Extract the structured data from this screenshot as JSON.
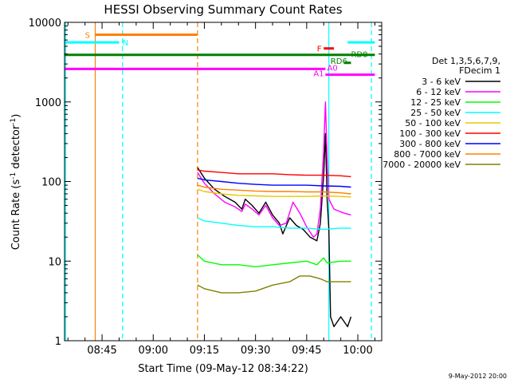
{
  "chart_data": {
    "type": "line",
    "title": "HESSI Observing Summary Count Rates",
    "ylabel": "Count Rate (s⁻¹ detector⁻¹)",
    "ylabel_parts": {
      "main": "Count Rate (s",
      "sup1": "-1",
      "mid": " detector",
      "sup2": "-1",
      "end": ")"
    },
    "xlabel": "Start Time (09-May-12 08:34:22)",
    "date_stamp": "9-May-2012 20:00",
    "y_scale": "log",
    "ylim": [
      1,
      10000
    ],
    "xlim": [
      "08:34",
      "10:07"
    ],
    "y_ticks": [
      {
        "value": 1,
        "label": "1"
      },
      {
        "value": 10,
        "label": "10"
      },
      {
        "value": 100,
        "label": "100"
      },
      {
        "value": 1000,
        "label": "1000"
      },
      {
        "value": 10000,
        "label": "10000"
      }
    ],
    "x_ticks": [
      {
        "value": "08:45",
        "label": "08:45"
      },
      {
        "value": "09:00",
        "label": "09:00"
      },
      {
        "value": "09:15",
        "label": "09:15"
      },
      {
        "value": "09:30",
        "label": "09:30"
      },
      {
        "value": "09:45",
        "label": "09:45"
      },
      {
        "value": "10:00",
        "label": "10:00"
      }
    ],
    "legend": {
      "placement": "right",
      "header": [
        "Det 1,3,5,6,7,9,",
        "FDecim 1"
      ],
      "entries": [
        {
          "label": "3 - 6 keV",
          "color": "#000000"
        },
        {
          "label": "6 - 12 keV",
          "color": "#ff00ff"
        },
        {
          "label": "12 - 25 keV",
          "color": "#00ff00"
        },
        {
          "label": "25 - 50 keV",
          "color": "#00ffff"
        },
        {
          "label": "50 - 100 keV",
          "color": "#e8c800"
        },
        {
          "label": "100 - 300 keV",
          "color": "#ff0000"
        },
        {
          "label": "300 - 800 keV",
          "color": "#0000ff"
        },
        {
          "label": "800 - 7000 keV",
          "color": "#ff8000"
        },
        {
          "label": "7000 - 20000 keV",
          "color": "#808000"
        }
      ]
    },
    "series": [
      {
        "name": "3 - 6 keV",
        "color": "#000000",
        "values": [
          [
            "09:13",
            150
          ],
          [
            "09:15",
            110
          ],
          [
            "09:18",
            80
          ],
          [
            "09:21",
            65
          ],
          [
            "09:24",
            55
          ],
          [
            "09:26",
            45
          ],
          [
            "09:27",
            60
          ],
          [
            "09:29",
            50
          ],
          [
            "09:31",
            40
          ],
          [
            "09:33",
            55
          ],
          [
            "09:35",
            38
          ],
          [
            "09:37",
            30
          ],
          [
            "09:38",
            22
          ],
          [
            "09:40",
            35
          ],
          [
            "09:42",
            28
          ],
          [
            "09:44",
            25
          ],
          [
            "09:46",
            20
          ],
          [
            "09:48",
            18
          ],
          [
            "09:49",
            30
          ],
          [
            "09:50",
            120
          ],
          [
            "09:50.5",
            400
          ],
          [
            "09:51",
            60
          ],
          [
            "09:51.5",
            25
          ],
          [
            "09:52",
            2
          ],
          [
            "09:53",
            1.5
          ],
          [
            "09:55",
            2
          ],
          [
            "09:57",
            1.5
          ],
          [
            "09:58",
            2
          ]
        ]
      },
      {
        "name": "6 - 12 keV",
        "color": "#ff00ff",
        "values": [
          [
            "09:13",
            130
          ],
          [
            "09:15",
            95
          ],
          [
            "09:18",
            70
          ],
          [
            "09:21",
            55
          ],
          [
            "09:24",
            48
          ],
          [
            "09:26",
            42
          ],
          [
            "09:27",
            52
          ],
          [
            "09:29",
            45
          ],
          [
            "09:31",
            38
          ],
          [
            "09:33",
            50
          ],
          [
            "09:35",
            35
          ],
          [
            "09:37",
            28
          ],
          [
            "09:39",
            30
          ],
          [
            "09:41",
            55
          ],
          [
            "09:43",
            40
          ],
          [
            "09:45",
            27
          ],
          [
            "09:47",
            20
          ],
          [
            "09:48",
            22
          ],
          [
            "09:49",
            45
          ],
          [
            "09:50",
            250
          ],
          [
            "09:50.5",
            1000
          ],
          [
            "09:51",
            200
          ],
          [
            "09:51.5",
            60
          ],
          [
            "09:53",
            45
          ],
          [
            "09:56",
            40
          ],
          [
            "09:58",
            38
          ]
        ]
      },
      {
        "name": "12 - 25 keV",
        "color": "#00ff00",
        "values": [
          [
            "09:13",
            12
          ],
          [
            "09:15",
            10
          ],
          [
            "09:20",
            9
          ],
          [
            "09:25",
            9
          ],
          [
            "09:30",
            8.5
          ],
          [
            "09:35",
            9
          ],
          [
            "09:40",
            9.5
          ],
          [
            "09:45",
            10
          ],
          [
            "09:48",
            9
          ],
          [
            "09:50",
            11
          ],
          [
            "09:51",
            9.5
          ],
          [
            "09:55",
            10
          ],
          [
            "09:58",
            10
          ]
        ]
      },
      {
        "name": "25 - 50 keV",
        "color": "#00ffff",
        "values": [
          [
            "09:13",
            35
          ],
          [
            "09:15",
            32
          ],
          [
            "09:20",
            30
          ],
          [
            "09:25",
            28
          ],
          [
            "09:30",
            27
          ],
          [
            "09:35",
            27
          ],
          [
            "09:40",
            26
          ],
          [
            "09:45",
            26
          ],
          [
            "09:50",
            25
          ],
          [
            "09:55",
            26
          ],
          [
            "09:58",
            26
          ]
        ]
      },
      {
        "name": "50 - 100 keV",
        "color": "#e8c800",
        "values": [
          [
            "09:13",
            80
          ],
          [
            "09:15",
            75
          ],
          [
            "09:20",
            70
          ],
          [
            "09:25",
            67
          ],
          [
            "09:30",
            66
          ],
          [
            "09:35",
            65
          ],
          [
            "09:40",
            65
          ],
          [
            "09:45",
            65
          ],
          [
            "09:50",
            66
          ],
          [
            "09:55",
            65
          ],
          [
            "09:58",
            64
          ]
        ]
      },
      {
        "name": "100 - 300 keV",
        "color": "#ff0000",
        "values": [
          [
            "09:13",
            140
          ],
          [
            "09:15",
            135
          ],
          [
            "09:20",
            130
          ],
          [
            "09:25",
            125
          ],
          [
            "09:30",
            125
          ],
          [
            "09:35",
            125
          ],
          [
            "09:40",
            122
          ],
          [
            "09:45",
            120
          ],
          [
            "09:50",
            120
          ],
          [
            "09:55",
            118
          ],
          [
            "09:58",
            115
          ]
        ]
      },
      {
        "name": "300 - 800 keV",
        "color": "#0000ff",
        "values": [
          [
            "09:13",
            110
          ],
          [
            "09:15",
            105
          ],
          [
            "09:20",
            100
          ],
          [
            "09:25",
            95
          ],
          [
            "09:30",
            92
          ],
          [
            "09:35",
            90
          ],
          [
            "09:40",
            90
          ],
          [
            "09:45",
            90
          ],
          [
            "09:50",
            88
          ],
          [
            "09:55",
            87
          ],
          [
            "09:58",
            85
          ]
        ]
      },
      {
        "name": "800 - 7000 keV",
        "color": "#ff8000",
        "values": [
          [
            "09:13",
            90
          ],
          [
            "09:15",
            85
          ],
          [
            "09:20",
            80
          ],
          [
            "09:25",
            78
          ],
          [
            "09:30",
            76
          ],
          [
            "09:35",
            75
          ],
          [
            "09:40",
            75
          ],
          [
            "09:45",
            74
          ],
          [
            "09:50",
            74
          ],
          [
            "09:55",
            72
          ],
          [
            "09:58",
            70
          ]
        ]
      },
      {
        "name": "7000 - 20000 keV",
        "color": "#808000",
        "values": [
          [
            "09:13",
            5
          ],
          [
            "09:15",
            4.5
          ],
          [
            "09:20",
            4
          ],
          [
            "09:25",
            4
          ],
          [
            "09:30",
            4.2
          ],
          [
            "09:35",
            5
          ],
          [
            "09:40",
            5.5
          ],
          [
            "09:43",
            6.5
          ],
          [
            "09:46",
            6.5
          ],
          [
            "09:49",
            6
          ],
          [
            "09:51",
            5.5
          ],
          [
            "09:55",
            5.5
          ],
          [
            "09:58",
            5.5
          ]
        ]
      }
    ],
    "state_bars": [
      {
        "label": "S",
        "color": "#ff8000",
        "y": 7000,
        "x_start": "08:43",
        "x_end": "09:13"
      },
      {
        "label": "N",
        "color": "#00ffff",
        "y": 5600,
        "x_start": "08:34",
        "x_end": "08:50"
      },
      {
        "label": "N",
        "color": "#00ffff",
        "y": 5600,
        "x_start": "09:57",
        "x_end": "10:05"
      },
      {
        "label": "F",
        "color": "#ff0000",
        "y": 4700,
        "x_start": "09:50",
        "x_end": "09:53"
      },
      {
        "label": "RD8",
        "color": "#008000",
        "y": 3900,
        "x_start": "08:34",
        "x_end": "10:05"
      },
      {
        "label": "RD6",
        "color": "#008000",
        "y": 3100,
        "x_start": "09:56",
        "x_end": "09:58"
      },
      {
        "label": "A1",
        "color": "#ff00ff",
        "y": 2600,
        "x_start": "08:34",
        "x_end": "09:50.5"
      },
      {
        "label": "A0",
        "color": "#ff00ff",
        "y": 2200,
        "x_start": "09:50.5",
        "x_end": "10:05"
      }
    ],
    "state_labels": [
      {
        "text": "S",
        "color": "#ff8000",
        "x": "08:40",
        "y": 7000
      },
      {
        "text": "N",
        "color": "#00ffff",
        "x": "08:51",
        "y": 5600
      },
      {
        "text": "F",
        "color": "#ff0000",
        "x": "09:48",
        "y": 4700
      },
      {
        "text": "RD8",
        "color": "#008000",
        "x": "09:58",
        "y": 4000
      },
      {
        "text": "RD6",
        "color": "#008000",
        "x": "09:52",
        "y": 3300
      },
      {
        "text": "A1",
        "color": "#ff00ff",
        "x": "09:47",
        "y": 2300
      },
      {
        "text": "A0",
        "color": "#ff00ff",
        "x": "09:51",
        "y": 2700
      }
    ],
    "vertical_markers": [
      {
        "x": "08:34.3",
        "color": "#00ffff",
        "style": "solid"
      },
      {
        "x": "08:43",
        "color": "#ff8000",
        "style": "solid"
      },
      {
        "x": "08:51",
        "color": "#00ffff",
        "style": "dashed"
      },
      {
        "x": "09:13",
        "color": "#ff8000",
        "style": "dashed"
      },
      {
        "x": "09:51.5",
        "color": "#00ffff",
        "style": "solid"
      },
      {
        "x": "10:04",
        "color": "#00ffff",
        "style": "dashed"
      }
    ]
  }
}
